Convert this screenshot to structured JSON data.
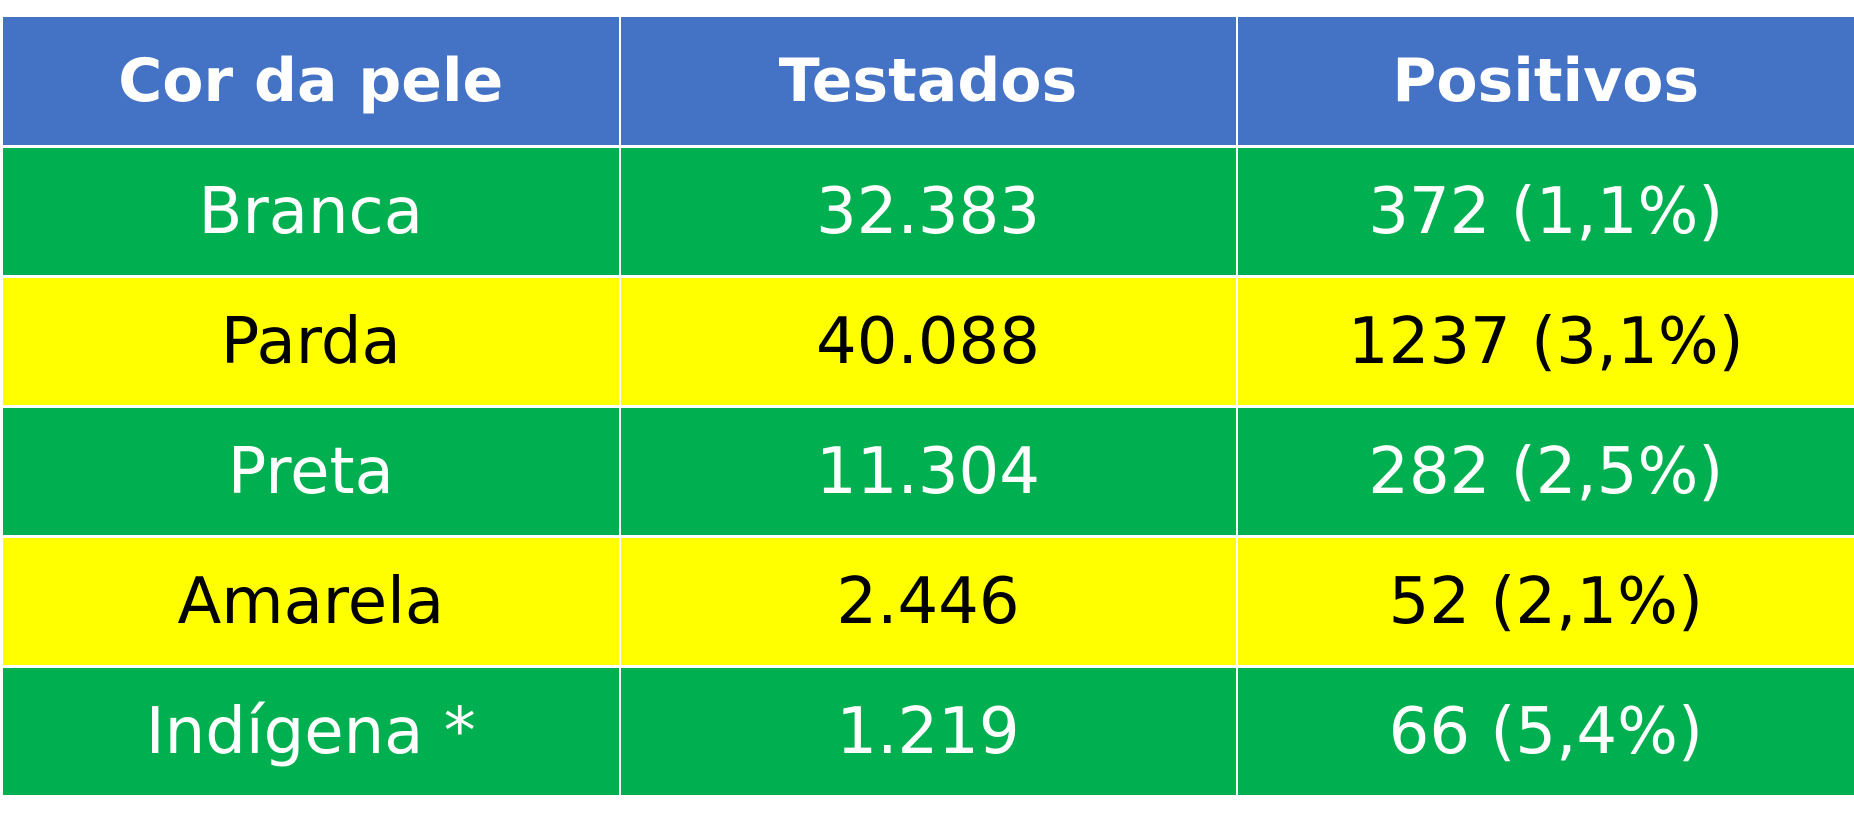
{
  "colors": {
    "header_bg": "#4472c4",
    "green_row_bg": "#00b050",
    "yellow_row_bg": "#ffff00",
    "green_row_text": "#ffffff",
    "yellow_row_text": "#000000"
  },
  "table": {
    "headers": [
      "Cor da pele",
      "Testados",
      "Positivos"
    ],
    "rows": [
      {
        "color": "Branca",
        "tested": "32.383",
        "positive": "372 (1,1%)",
        "style": "green"
      },
      {
        "color": "Parda",
        "tested": "40.088",
        "positive": "1237 (3,1%)",
        "style": "yellow"
      },
      {
        "color": "Preta",
        "tested": "11.304",
        "positive": "282 (2,5%)",
        "style": "green"
      },
      {
        "color": "Amarela",
        "tested": "2.446",
        "positive": "52 (2,1%)",
        "style": "yellow"
      },
      {
        "color": "Indígena *",
        "tested": "1.219",
        "positive": "66 (5,4%)",
        "style": "green"
      }
    ]
  }
}
